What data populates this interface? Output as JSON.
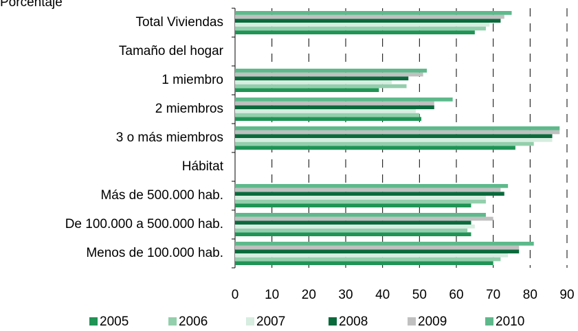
{
  "chart_data": {
    "type": "barh",
    "y_label": "Porcentaje",
    "categories": [
      "Total Viviendas",
      "Tamaño del hogar",
      "1 miembro",
      "2 miembros",
      "3 o más miembros",
      "Hábitat",
      "Más de 500.000 hab.",
      "De 100.000 a 500.000 hab.",
      "Menos de 100.000 hab."
    ],
    "series": [
      {
        "name": "2005",
        "color": "#1f9455",
        "values": [
          65,
          null,
          39,
          50.5,
          76,
          null,
          64,
          64,
          70
        ]
      },
      {
        "name": "2006",
        "color": "#93cfac",
        "values": [
          68,
          null,
          46.5,
          50,
          81,
          null,
          68,
          63,
          72
        ]
      },
      {
        "name": "2007",
        "color": "#d6ede0",
        "values": [
          69,
          null,
          42.5,
          49,
          86,
          null,
          68,
          65,
          74
        ]
      },
      {
        "name": "2008",
        "color": "#0b6a3c",
        "values": [
          72,
          null,
          47,
          54,
          86,
          null,
          73,
          64,
          77
        ]
      },
      {
        "name": "2009",
        "color": "#c0c0c0",
        "values": [
          73,
          null,
          51,
          54,
          88,
          null,
          72,
          70,
          77
        ]
      },
      {
        "name": "2010",
        "color": "#5db98b",
        "values": [
          75,
          null,
          52,
          59,
          88,
          null,
          74,
          68,
          81
        ]
      }
    ],
    "xlim": [
      0,
      90
    ],
    "xticks": [
      0,
      10,
      20,
      30,
      40,
      50,
      60,
      70,
      80,
      90
    ],
    "grid": true,
    "legend": "bottom"
  }
}
